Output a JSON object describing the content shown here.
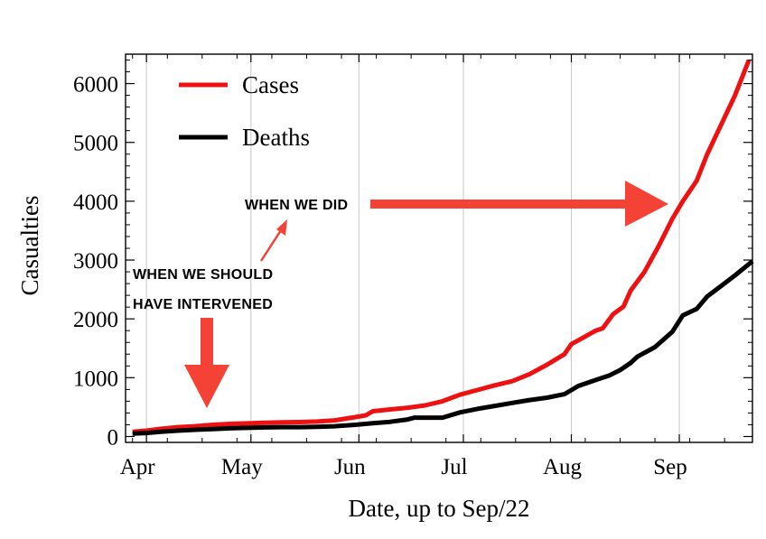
{
  "chart_data": {
    "type": "line",
    "title": "",
    "xlabel": "Date, up to Sep/22",
    "ylabel": "Casualties",
    "x_range": [
      "2020-03-26",
      "2020-09-22"
    ],
    "ylim": [
      -100,
      6500
    ],
    "x_ticks": [
      {
        "label": "Apr",
        "date": "2020-04-01"
      },
      {
        "label": "May",
        "date": "2020-05-01"
      },
      {
        "label": "Jun",
        "date": "2020-06-01"
      },
      {
        "label": "Jul",
        "date": "2020-07-01"
      },
      {
        "label": "Aug",
        "date": "2020-08-01"
      },
      {
        "label": "Sep",
        "date": "2020-09-01"
      }
    ],
    "y_ticks": [
      0,
      1000,
      2000,
      3000,
      4000,
      5000,
      6000
    ],
    "grid": "vertical at month starts",
    "legend_position": "top-left",
    "series": [
      {
        "name": "Cases",
        "color": "#ee1111",
        "points": [
          [
            "2020-03-28",
            80
          ],
          [
            "2020-04-01",
            100
          ],
          [
            "2020-04-05",
            130
          ],
          [
            "2020-04-10",
            160
          ],
          [
            "2020-04-15",
            175
          ],
          [
            "2020-04-20",
            200
          ],
          [
            "2020-04-25",
            215
          ],
          [
            "2020-05-01",
            225
          ],
          [
            "2020-05-05",
            235
          ],
          [
            "2020-05-10",
            240
          ],
          [
            "2020-05-15",
            245
          ],
          [
            "2020-05-20",
            255
          ],
          [
            "2020-05-25",
            275
          ],
          [
            "2020-05-31",
            330
          ],
          [
            "2020-06-03",
            360
          ],
          [
            "2020-06-05",
            430
          ],
          [
            "2020-06-10",
            460
          ],
          [
            "2020-06-15",
            490
          ],
          [
            "2020-06-20",
            530
          ],
          [
            "2020-06-25",
            600
          ],
          [
            "2020-06-30",
            710
          ],
          [
            "2020-07-05",
            790
          ],
          [
            "2020-07-10",
            870
          ],
          [
            "2020-07-15",
            940
          ],
          [
            "2020-07-20",
            1060
          ],
          [
            "2020-07-25",
            1220
          ],
          [
            "2020-07-30",
            1400
          ],
          [
            "2020-08-01",
            1570
          ],
          [
            "2020-08-05",
            1700
          ],
          [
            "2020-08-08",
            1800
          ],
          [
            "2020-08-10",
            1840
          ],
          [
            "2020-08-13",
            2080
          ],
          [
            "2020-08-16",
            2210
          ],
          [
            "2020-08-18",
            2480
          ],
          [
            "2020-08-22",
            2800
          ],
          [
            "2020-08-26",
            3230
          ],
          [
            "2020-08-30",
            3700
          ],
          [
            "2020-09-02",
            4000
          ],
          [
            "2020-09-06",
            4350
          ],
          [
            "2020-09-09",
            4800
          ],
          [
            "2020-09-13",
            5300
          ],
          [
            "2020-09-17",
            5800
          ],
          [
            "2020-09-21",
            6400
          ]
        ]
      },
      {
        "name": "Deaths",
        "color": "#000000",
        "points": [
          [
            "2020-03-28",
            50
          ],
          [
            "2020-04-01",
            60
          ],
          [
            "2020-04-05",
            80
          ],
          [
            "2020-04-10",
            100
          ],
          [
            "2020-04-15",
            115
          ],
          [
            "2020-04-20",
            125
          ],
          [
            "2020-04-25",
            140
          ],
          [
            "2020-05-01",
            150
          ],
          [
            "2020-05-05",
            155
          ],
          [
            "2020-05-10",
            160
          ],
          [
            "2020-05-15",
            160
          ],
          [
            "2020-05-20",
            165
          ],
          [
            "2020-05-25",
            175
          ],
          [
            "2020-05-31",
            200
          ],
          [
            "2020-06-05",
            225
          ],
          [
            "2020-06-10",
            250
          ],
          [
            "2020-06-15",
            290
          ],
          [
            "2020-06-17",
            320
          ],
          [
            "2020-06-25",
            320
          ],
          [
            "2020-06-30",
            410
          ],
          [
            "2020-07-05",
            470
          ],
          [
            "2020-07-10",
            520
          ],
          [
            "2020-07-15",
            570
          ],
          [
            "2020-07-20",
            620
          ],
          [
            "2020-07-25",
            660
          ],
          [
            "2020-07-30",
            720
          ],
          [
            "2020-08-03",
            860
          ],
          [
            "2020-08-08",
            960
          ],
          [
            "2020-08-12",
            1040
          ],
          [
            "2020-08-15",
            1130
          ],
          [
            "2020-08-18",
            1250
          ],
          [
            "2020-08-20",
            1360
          ],
          [
            "2020-08-25",
            1520
          ],
          [
            "2020-08-30",
            1780
          ],
          [
            "2020-09-02",
            2060
          ],
          [
            "2020-09-06",
            2170
          ],
          [
            "2020-09-09",
            2380
          ],
          [
            "2020-09-13",
            2560
          ],
          [
            "2020-09-17",
            2740
          ],
          [
            "2020-09-22",
            2980
          ]
        ]
      }
    ],
    "annotations": [
      {
        "lines": [
          "WHEN WE SHOULD",
          "HAVE INTERVENED"
        ],
        "arrow": "red arrow pointing down to mid-April"
      },
      {
        "lines": [
          "WHEN WE DID"
        ],
        "arrow": "red arrow pointing right to early September"
      }
    ]
  }
}
